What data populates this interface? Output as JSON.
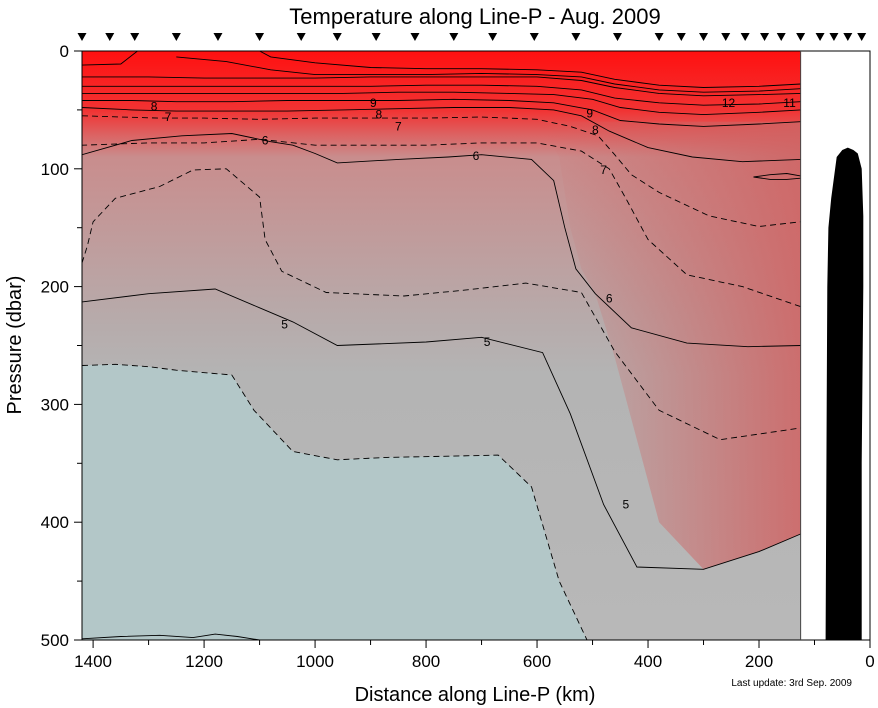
{
  "chart_data": {
    "type": "contour",
    "title": "Temperature along Line-P - Aug. 2009",
    "xlabel": "Distance along Line-P (km)",
    "ylabel": "Pressure (dbar)",
    "footnote": "Last update: 3rd Sep. 2009",
    "x_axis": {
      "min": 0,
      "max": 1420,
      "reversed": true,
      "ticks": [
        1400,
        1200,
        1000,
        800,
        600,
        400,
        200,
        0
      ]
    },
    "y_axis": {
      "min": 0,
      "max": 500,
      "reversed": true,
      "ticks": [
        0,
        100,
        200,
        300,
        400,
        500
      ]
    },
    "grid": false,
    "data_extent_km": [
      125,
      1420
    ],
    "station_markers_km": [
      1420,
      1370,
      1325,
      1250,
      1175,
      1100,
      1025,
      960,
      890,
      820,
      750,
      680,
      605,
      530,
      455,
      380,
      340,
      300,
      260,
      225,
      190,
      160,
      125,
      90,
      65,
      40,
      15
    ],
    "color_scale": {
      "cold": "#b3c7c8",
      "mid": "#b4a8a8",
      "warm": "#d06060",
      "hot": "#ff1010"
    },
    "bathymetry_color": "#000000",
    "contours": [
      {
        "level": "5",
        "style": "solid",
        "points": [
          [
            1420,
            213
          ],
          [
            1300,
            206
          ],
          [
            1180,
            202
          ],
          [
            1100,
            218
          ],
          [
            1040,
            230
          ],
          [
            960,
            250
          ],
          [
            800,
            247
          ],
          [
            700,
            243
          ],
          [
            590,
            256
          ],
          [
            540,
            308
          ],
          [
            480,
            385
          ],
          [
            420,
            438
          ],
          [
            300,
            440
          ],
          [
            200,
            425
          ],
          [
            125,
            410
          ]
        ]
      },
      {
        "level": "5.5",
        "style": "dashed",
        "points": [
          [
            1420,
            267
          ],
          [
            1360,
            266
          ],
          [
            1300,
            268
          ],
          [
            1250,
            271
          ],
          [
            1150,
            275
          ],
          [
            1110,
            305
          ],
          [
            1040,
            340
          ],
          [
            960,
            347
          ],
          [
            870,
            345
          ],
          [
            760,
            344
          ],
          [
            670,
            343
          ],
          [
            610,
            370
          ],
          [
            560,
            450
          ],
          [
            510,
            500
          ]
        ]
      },
      {
        "level": "6",
        "style": "solid",
        "points": [
          [
            1420,
            88
          ],
          [
            1330,
            76
          ],
          [
            1240,
            72
          ],
          [
            1150,
            70
          ],
          [
            1080,
            77
          ],
          [
            1040,
            80
          ],
          [
            1000,
            87
          ],
          [
            960,
            95
          ],
          [
            850,
            92
          ],
          [
            760,
            90
          ],
          [
            700,
            88
          ],
          [
            610,
            92
          ],
          [
            570,
            110
          ],
          [
            550,
            150
          ],
          [
            530,
            185
          ],
          [
            495,
            206
          ],
          [
            430,
            235
          ],
          [
            330,
            248
          ],
          [
            220,
            251
          ],
          [
            125,
            250
          ]
        ]
      },
      {
        "level": "6.5",
        "style": "dashed",
        "points": [
          [
            1420,
            180
          ],
          [
            1410,
            165
          ],
          [
            1400,
            145
          ],
          [
            1360,
            125
          ],
          [
            1320,
            120
          ],
          [
            1280,
            115
          ],
          [
            1220,
            101
          ],
          [
            1160,
            100
          ],
          [
            1100,
            124
          ],
          [
            1090,
            160
          ],
          [
            1060,
            187
          ],
          [
            980,
            205
          ],
          [
            840,
            208
          ],
          [
            730,
            203
          ],
          [
            620,
            197
          ],
          [
            520,
            205
          ],
          [
            460,
            255
          ],
          [
            380,
            305
          ],
          [
            270,
            330
          ],
          [
            125,
            320
          ]
        ]
      },
      {
        "level": "6.5b",
        "style": "dashed",
        "points": [
          [
            125,
            217
          ],
          [
            230,
            200
          ],
          [
            330,
            190
          ],
          [
            400,
            160
          ],
          [
            440,
            125
          ],
          [
            470,
            100
          ],
          [
            520,
            85
          ],
          [
            600,
            78
          ],
          [
            700,
            78
          ],
          [
            800,
            80
          ],
          [
            900,
            80
          ],
          [
            1000,
            80
          ],
          [
            1100,
            75
          ],
          [
            1200,
            78
          ],
          [
            1300,
            78
          ],
          [
            1420,
            80
          ]
        ]
      },
      {
        "level": "7",
        "style": "dashed",
        "points": [
          [
            1420,
            55
          ],
          [
            1350,
            56
          ],
          [
            1280,
            57
          ],
          [
            1200,
            57
          ],
          [
            1100,
            58
          ],
          [
            1000,
            57
          ],
          [
            900,
            57
          ],
          [
            800,
            57
          ],
          [
            700,
            56
          ],
          [
            600,
            58
          ],
          [
            540,
            64
          ],
          [
            490,
            72
          ],
          [
            460,
            88
          ],
          [
            430,
            105
          ],
          [
            380,
            120
          ],
          [
            290,
            140
          ],
          [
            200,
            149
          ],
          [
            125,
            145
          ]
        ]
      },
      {
        "level": "7b",
        "style": "solid",
        "points": [
          [
            1420,
            48
          ],
          [
            1330,
            50
          ],
          [
            1250,
            51
          ],
          [
            1150,
            51
          ],
          [
            1050,
            51
          ],
          [
            950,
            50
          ],
          [
            850,
            49
          ],
          [
            750,
            48
          ],
          [
            650,
            48
          ],
          [
            570,
            50
          ],
          [
            520,
            55
          ],
          [
            470,
            68
          ],
          [
            400,
            82
          ],
          [
            320,
            90
          ],
          [
            230,
            94
          ],
          [
            125,
            92
          ]
        ]
      },
      {
        "level": "8",
        "style": "solid",
        "points": [
          [
            1420,
            42
          ],
          [
            1330,
            42
          ],
          [
            1250,
            43
          ],
          [
            1150,
            43
          ],
          [
            1050,
            42
          ],
          [
            950,
            42
          ],
          [
            850,
            42
          ],
          [
            750,
            41
          ],
          [
            650,
            42
          ],
          [
            570,
            44
          ],
          [
            500,
            50
          ],
          [
            450,
            59
          ],
          [
            380,
            62
          ],
          [
            300,
            64
          ],
          [
            200,
            62
          ],
          [
            125,
            60
          ]
        ]
      },
      {
        "level": "9",
        "style": "solid",
        "points": [
          [
            1420,
            36
          ],
          [
            1330,
            36
          ],
          [
            1250,
            36
          ],
          [
            1150,
            36
          ],
          [
            1050,
            36
          ],
          [
            950,
            36
          ],
          [
            850,
            35
          ],
          [
            750,
            35
          ],
          [
            650,
            36
          ],
          [
            570,
            37
          ],
          [
            500,
            41
          ],
          [
            450,
            48
          ],
          [
            380,
            52
          ],
          [
            300,
            54
          ],
          [
            200,
            52
          ],
          [
            125,
            50
          ]
        ]
      },
      {
        "level": "10",
        "style": "solid",
        "points": [
          [
            1420,
            30
          ],
          [
            1300,
            30
          ],
          [
            1200,
            30
          ],
          [
            1100,
            30
          ],
          [
            1000,
            30
          ],
          [
            900,
            30
          ],
          [
            800,
            29
          ],
          [
            700,
            29
          ],
          [
            600,
            30
          ],
          [
            520,
            33
          ],
          [
            460,
            40
          ],
          [
            380,
            44
          ],
          [
            300,
            46
          ],
          [
            200,
            45
          ],
          [
            125,
            43
          ]
        ]
      },
      {
        "level": "11",
        "style": "solid",
        "points": [
          [
            1420,
            22
          ],
          [
            1300,
            22
          ],
          [
            1200,
            23
          ],
          [
            1100,
            23
          ],
          [
            1000,
            23
          ],
          [
            900,
            22
          ],
          [
            800,
            22
          ],
          [
            700,
            22
          ],
          [
            600,
            22
          ],
          [
            520,
            25
          ],
          [
            460,
            31
          ],
          [
            380,
            36
          ],
          [
            300,
            38
          ],
          [
            200,
            37
          ],
          [
            125,
            36
          ]
        ]
      },
      {
        "level": "12",
        "style": "solid",
        "points": [
          [
            1420,
            12
          ],
          [
            1350,
            11
          ],
          [
            1320,
            0
          ],
          [
            1100,
            0
          ],
          [
            1080,
            5
          ],
          [
            1000,
            10
          ],
          [
            900,
            14
          ],
          [
            800,
            15
          ],
          [
            700,
            15
          ],
          [
            600,
            16
          ],
          [
            520,
            18
          ],
          [
            460,
            24
          ],
          [
            380,
            29
          ],
          [
            300,
            31
          ],
          [
            200,
            30
          ],
          [
            125,
            28
          ]
        ]
      },
      {
        "level": "12b",
        "style": "solid",
        "points": [
          [
            1250,
            5
          ],
          [
            1160,
            9
          ],
          [
            1080,
            16
          ],
          [
            1000,
            20
          ],
          [
            900,
            20
          ],
          [
            800,
            20
          ],
          [
            700,
            19
          ],
          [
            600,
            20
          ],
          [
            520,
            22
          ],
          [
            460,
            28
          ],
          [
            380,
            33
          ],
          [
            300,
            35
          ],
          [
            200,
            34
          ],
          [
            125,
            32
          ]
        ]
      },
      {
        "level": "blob",
        "style": "solid",
        "points": [
          [
            125,
            106
          ],
          [
            150,
            104
          ],
          [
            180,
            105
          ],
          [
            210,
            107
          ],
          [
            180,
            109
          ],
          [
            150,
            109
          ],
          [
            125,
            108
          ]
        ]
      },
      {
        "level": "bottom",
        "style": "solid",
        "points": [
          [
            1420,
            499
          ],
          [
            1350,
            497
          ],
          [
            1280,
            496
          ],
          [
            1220,
            498
          ],
          [
            1180,
            495
          ],
          [
            1140,
            497
          ],
          [
            1100,
            500
          ]
        ]
      }
    ],
    "contour_labels": [
      {
        "text": "8",
        "x": 1290,
        "y": 47
      },
      {
        "text": "7",
        "x": 1265,
        "y": 56
      },
      {
        "text": "6",
        "x": 1090,
        "y": 76
      },
      {
        "text": "9",
        "x": 895,
        "y": 44
      },
      {
        "text": "8",
        "x": 885,
        "y": 54
      },
      {
        "text": "7",
        "x": 850,
        "y": 64
      },
      {
        "text": "6",
        "x": 710,
        "y": 89
      },
      {
        "text": "9",
        "x": 505,
        "y": 53
      },
      {
        "text": "8",
        "x": 495,
        "y": 67
      },
      {
        "text": "7",
        "x": 480,
        "y": 101
      },
      {
        "text": "12",
        "x": 255,
        "y": 44
      },
      {
        "text": "11",
        "x": 145,
        "y": 44
      },
      {
        "text": "5",
        "x": 1055,
        "y": 232
      },
      {
        "text": "5",
        "x": 690,
        "y": 247
      },
      {
        "text": "6",
        "x": 470,
        "y": 210
      },
      {
        "text": "5",
        "x": 440,
        "y": 385
      }
    ],
    "bathymetry": [
      [
        80,
        500
      ],
      [
        78,
        300
      ],
      [
        77,
        200
      ],
      [
        75,
        150
      ],
      [
        70,
        125
      ],
      [
        60,
        90
      ],
      [
        50,
        84
      ],
      [
        40,
        82
      ],
      [
        30,
        84
      ],
      [
        22,
        87
      ],
      [
        15,
        100
      ],
      [
        12,
        140
      ],
      [
        12,
        200
      ],
      [
        15,
        350
      ],
      [
        15,
        500
      ]
    ]
  }
}
